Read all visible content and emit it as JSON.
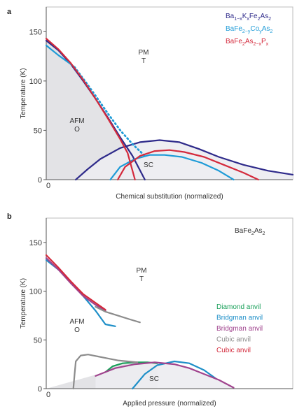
{
  "chart_data": [
    {
      "type": "line",
      "panel_label": "a",
      "xlabel": "Chemical substitution (normalized)",
      "ylabel": "Temperature (K)",
      "x_tick_labels": [
        "0"
      ],
      "y_ticks": [
        0,
        50,
        100,
        150
      ],
      "ylim": [
        0,
        175
      ],
      "xlim": [
        0,
        1
      ],
      "legend_position": "top-right",
      "regions": [
        {
          "id": "pm",
          "line1": "PM",
          "line2": "T"
        },
        {
          "id": "afm",
          "line1": "AFM",
          "line2": "O"
        },
        {
          "id": "sc",
          "line1": "SC"
        }
      ],
      "series": [
        {
          "name": "Ba1−xKxFe2As2",
          "legend": [
            {
              "t": "Ba"
            },
            {
              "t": "1−x",
              "sub": true
            },
            {
              "t": "K"
            },
            {
              "t": "x",
              "sub": true
            },
            {
              "t": "Fe"
            },
            {
              "t": "2",
              "sub": true
            },
            {
              "t": "As"
            },
            {
              "t": "2",
              "sub": true
            }
          ],
          "color": "#2e2a8a",
          "curves": [
            {
              "style": "solid",
              "x": [
                0.0,
                0.05,
                0.1,
                0.15,
                0.2,
                0.25,
                0.3,
                0.35,
                0.4
              ],
              "y": [
                141,
                131,
                117,
                100,
                82,
                63,
                43,
                24,
                0
              ]
            },
            {
              "style": "solid",
              "x": [
                0.12,
                0.17,
                0.22,
                0.3,
                0.38,
                0.46,
                0.54,
                0.62,
                0.7,
                0.8,
                0.9,
                1.0
              ],
              "y": [
                0,
                11,
                21,
                32,
                38,
                40,
                38,
                31,
                23,
                15,
                9,
                5
              ]
            }
          ]
        },
        {
          "name": "BaFe2−yCoyAs2",
          "legend": [
            {
              "t": "BaFe"
            },
            {
              "t": "2−y",
              "sub": true
            },
            {
              "t": "Co"
            },
            {
              "t": "y",
              "sub": true
            },
            {
              "t": "As"
            },
            {
              "t": "2",
              "sub": true
            }
          ],
          "color": "#1e9bd7",
          "curves": [
            {
              "style": "solid",
              "x": [
                0.0,
                0.05,
                0.1,
                0.115
              ],
              "y": [
                136,
                126,
                117,
                114
              ]
            },
            {
              "style": "dotted",
              "x": [
                0.115,
                0.16,
                0.2,
                0.25,
                0.3,
                0.35,
                0.4
              ],
              "y": [
                114,
                99,
                85,
                67,
                50,
                36,
                24
              ]
            },
            {
              "style": "solid",
              "x": [
                0.26,
                0.3,
                0.36,
                0.42,
                0.48,
                0.55,
                0.63,
                0.7,
                0.76
              ],
              "y": [
                0,
                13,
                21,
                25,
                25,
                23,
                17,
                9,
                0
              ]
            }
          ]
        },
        {
          "name": "BaFe2As2−xPx",
          "legend": [
            {
              "t": "BaFe"
            },
            {
              "t": "2",
              "sub": true
            },
            {
              "t": "As"
            },
            {
              "t": "2−x",
              "sub": true
            },
            {
              "t": "P"
            },
            {
              "t": "x",
              "sub": true
            }
          ],
          "color": "#d42a3c",
          "curves": [
            {
              "style": "solid",
              "x": [
                0.0,
                0.05,
                0.1,
                0.15,
                0.2,
                0.25,
                0.3,
                0.33,
                0.36
              ],
              "y": [
                143,
                132,
                118,
                101,
                82,
                62,
                41,
                27,
                0
              ]
            },
            {
              "style": "solid",
              "x": [
                0.29,
                0.32,
                0.38,
                0.44,
                0.5,
                0.56,
                0.64,
                0.72,
                0.8,
                0.86
              ],
              "y": [
                0,
                13,
                24,
                29,
                30,
                28,
                23,
                15,
                7,
                0
              ]
            }
          ]
        }
      ]
    },
    {
      "type": "line",
      "panel_label": "b",
      "title": "BaFe2As2",
      "title_parts": [
        {
          "t": "BaFe"
        },
        {
          "t": "2",
          "sub": true
        },
        {
          "t": "As"
        },
        {
          "t": "2",
          "sub": true
        }
      ],
      "xlabel": "Applied pressure (normalized)",
      "ylabel": "Temperature (K)",
      "x_tick_labels": [
        "0"
      ],
      "y_ticks": [
        0,
        50,
        100,
        150
      ],
      "ylim": [
        0,
        175
      ],
      "xlim": [
        0,
        1
      ],
      "legend_position": "right",
      "regions": [
        {
          "id": "pm",
          "line1": "PM",
          "line2": "T"
        },
        {
          "id": "afm",
          "line1": "AFM",
          "line2": "O"
        },
        {
          "id": "sc",
          "line1": "SC"
        }
      ],
      "series": [
        {
          "name": "Diamond anvil",
          "color": "#1aa05a",
          "curves": [
            {
              "style": "solid",
              "x": [
                0.24,
                0.27,
                0.31,
                0.36,
                0.41,
                0.45
              ],
              "y": [
                17,
                23,
                26,
                27,
                27,
                26
              ]
            }
          ]
        },
        {
          "name": "Bridgman anvil",
          "color": "#1e8fc8",
          "curves": [
            {
              "style": "solid",
              "x": [
                0.0,
                0.05,
                0.1,
                0.15,
                0.2,
                0.24,
                0.28
              ],
              "y": [
                132,
                122,
                109,
                95,
                80,
                66,
                64
              ]
            },
            {
              "style": "solid",
              "x": [
                0.35,
                0.4,
                0.45,
                0.52,
                0.58,
                0.64,
                0.69
              ],
              "y": [
                0,
                15,
                24,
                28,
                26,
                19,
                10
              ]
            }
          ]
        },
        {
          "name": "Bridgman anvil",
          "color": "#a0448e",
          "curves": [
            {
              "style": "solid",
              "x": [
                0.0,
                0.05,
                0.1,
                0.15,
                0.2,
                0.24
              ],
              "y": [
                134,
                122,
                108,
                95,
                86,
                80
              ]
            },
            {
              "style": "solid",
              "x": [
                0.2,
                0.28,
                0.36,
                0.44,
                0.52,
                0.58,
                0.64,
                0.7,
                0.76
              ],
              "y": [
                13,
                21,
                25,
                27,
                25,
                21,
                15,
                9,
                1
              ]
            }
          ]
        },
        {
          "name": "Cubic anvil",
          "color": "#8c8c8c",
          "curves": [
            {
              "style": "solid",
              "x": [
                0.11,
                0.115,
                0.12,
                0.14,
                0.17,
                0.21,
                0.25,
                0.29,
                0.33,
                0.37
              ],
              "y": [
                0,
                15,
                28,
                34,
                35,
                33,
                31,
                29,
                28,
                27
              ]
            },
            {
              "style": "solid",
              "x": [
                0.2,
                0.24,
                0.29,
                0.34,
                0.38
              ],
              "y": [
                84,
                79,
                75,
                71,
                68
              ]
            }
          ]
        },
        {
          "name": "Cubic anvil",
          "color": "#d42a3c",
          "curves": [
            {
              "style": "solid",
              "x": [
                0.0,
                0.05,
                0.1,
                0.15,
                0.2,
                0.24
              ],
              "y": [
                137,
                124,
                110,
                97,
                88,
                81
              ]
            }
          ]
        }
      ]
    }
  ]
}
